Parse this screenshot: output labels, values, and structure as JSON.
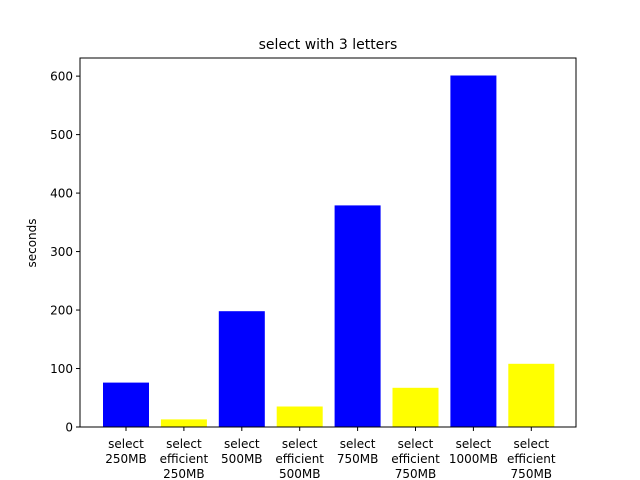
{
  "chart_data": {
    "type": "bar",
    "title": "select with 3 letters",
    "xlabel": "",
    "ylabel": "seconds",
    "categories": [
      "select\n250MB",
      "select\nefficient\n250MB",
      "select\n500MB",
      "select\nefficient\n500MB",
      "select\n750MB",
      "select\nefficient\n750MB",
      "select\n1000MB",
      "select\nefficient\n750MB"
    ],
    "values": [
      76,
      13,
      198,
      35,
      379,
      67,
      601,
      108
    ],
    "colors": [
      "#0000ff",
      "#ffff00",
      "#0000ff",
      "#ffff00",
      "#0000ff",
      "#ffff00",
      "#0000ff",
      "#ffff00"
    ],
    "ylim": [
      0,
      631
    ],
    "yticks": [
      0,
      100,
      200,
      300,
      400,
      500,
      600
    ],
    "grid": false,
    "legend": "none"
  }
}
